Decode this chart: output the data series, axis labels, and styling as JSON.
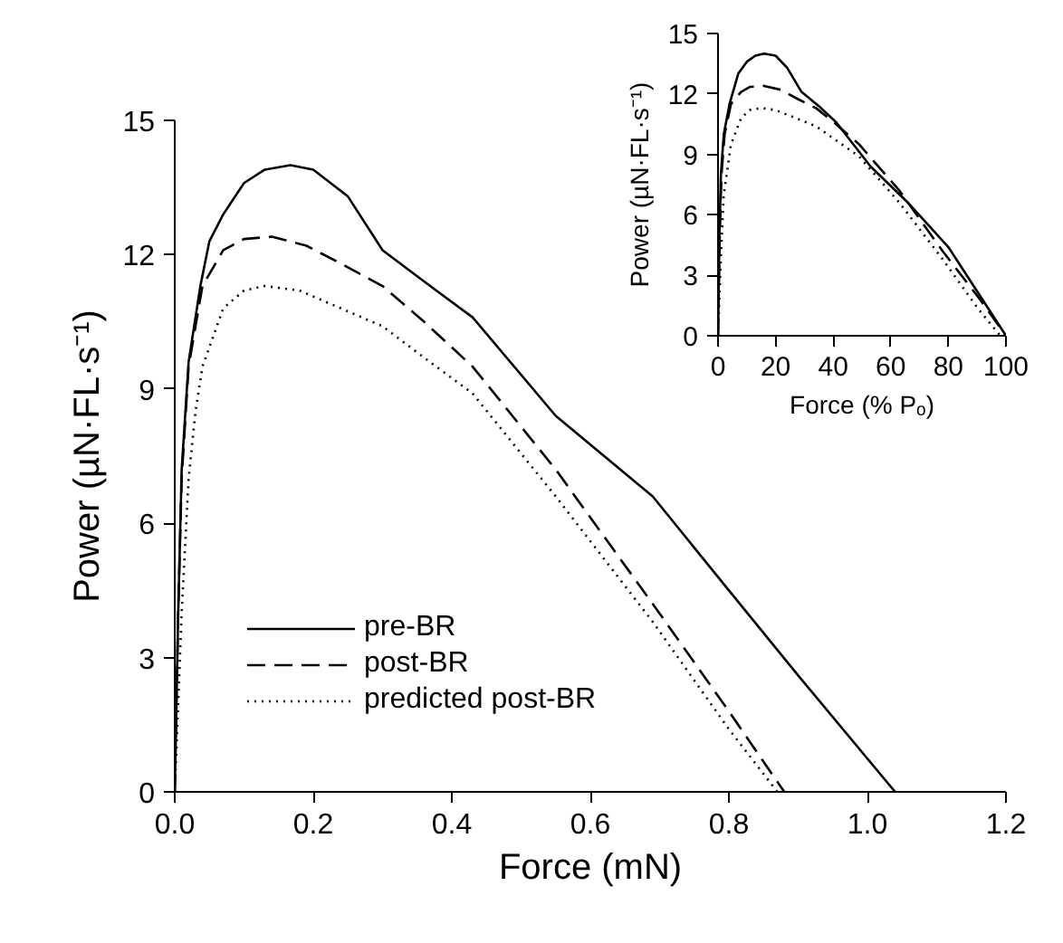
{
  "chart_data": [
    {
      "type": "line",
      "xlabel": "Force (mN)",
      "ylabel": "Power (µN·FL·s⁻¹)",
      "xlim": [
        0,
        1.2
      ],
      "ylim": [
        0,
        15
      ],
      "xticks": [
        {
          "value": 0,
          "label": "0.0"
        },
        0.2,
        0.4,
        0.6,
        0.8,
        {
          "value": 1,
          "label": "1.0"
        },
        1.2
      ],
      "yticks": [
        0,
        3,
        6,
        9,
        12,
        15
      ],
      "legend": "bottom left",
      "series": [
        {
          "name": "pre-BR",
          "color": "#000000",
          "line_style": "solid",
          "x": [
            0,
            0.005,
            0.01,
            0.02,
            0.037,
            0.05,
            0.07,
            0.1,
            0.13,
            0.167,
            0.2,
            0.25,
            0.3,
            0.36,
            0.43,
            0.55,
            0.69,
            0.8,
            0.9,
            1.04
          ],
          "values": [
            0,
            4,
            7.2,
            9.6,
            11.3,
            12.3,
            12.9,
            13.6,
            13.9,
            14.0,
            13.9,
            13.3,
            12.1,
            11.4,
            10.6,
            8.4,
            6.6,
            4.5,
            2.6,
            0
          ]
        },
        {
          "name": "post-BR",
          "color": "#000000",
          "line_style": "dashed",
          "x": [
            0,
            0.005,
            0.01,
            0.02,
            0.04,
            0.07,
            0.1,
            0.14,
            0.19,
            0.24,
            0.3,
            0.36,
            0.43,
            0.55,
            0.69,
            0.8,
            0.88
          ],
          "values": [
            0,
            4,
            7,
            9.5,
            11.3,
            12.1,
            12.35,
            12.4,
            12.2,
            11.8,
            11.3,
            10.5,
            9.5,
            7.2,
            4.2,
            1.8,
            0
          ]
        },
        {
          "name": "predicted post-BR",
          "color": "#000000",
          "line_style": "dotted",
          "x": [
            0,
            0.01,
            0.02,
            0.03,
            0.04,
            0.07,
            0.1,
            0.13,
            0.18,
            0.24,
            0.3,
            0.36,
            0.43,
            0.55,
            0.69,
            0.8,
            0.87
          ],
          "values": [
            0,
            4,
            7,
            8.5,
            9.5,
            10.8,
            11.2,
            11.3,
            11.2,
            10.8,
            10.4,
            9.7,
            8.9,
            6.6,
            3.8,
            1.4,
            0
          ]
        }
      ]
    },
    {
      "type": "line",
      "xlabel": "Force (% Pₒ)",
      "ylabel": "Power (µN·FL·s⁻¹)",
      "xlim": [
        0,
        100
      ],
      "ylim": [
        0,
        15
      ],
      "xticks": [
        0,
        20,
        40,
        60,
        80,
        100
      ],
      "yticks": [
        0,
        3,
        6,
        9,
        12,
        15
      ],
      "series": [
        {
          "color": "#000000",
          "line_style": "solid",
          "x": [
            0,
            0.5,
            1,
            2,
            4,
            7,
            10,
            13,
            16,
            20,
            24,
            29,
            35,
            41,
            53,
            66,
            80,
            100
          ],
          "values": [
            0,
            5,
            8,
            10,
            11.5,
            13,
            13.6,
            13.9,
            14.0,
            13.9,
            13.3,
            12.1,
            11.4,
            10.6,
            8.4,
            6.6,
            4.4,
            0
          ]
        },
        {
          "color": "#000000",
          "line_style": "dashed",
          "x": [
            0,
            0.6,
            1.2,
            2.3,
            4.5,
            8,
            11,
            16,
            22,
            27,
            34,
            41,
            49,
            63,
            78,
            91,
            100
          ],
          "values": [
            0,
            5,
            8,
            10,
            11.5,
            12.1,
            12.35,
            12.4,
            12.2,
            11.8,
            11.3,
            10.5,
            9.5,
            7.2,
            4.2,
            1.8,
            0
          ]
        },
        {
          "color": "#000000",
          "line_style": "dotted",
          "x": [
            0,
            1,
            2,
            3.5,
            4.5,
            8,
            11,
            15,
            20,
            27,
            34,
            41,
            49,
            63,
            78,
            90,
            98
          ],
          "values": [
            0,
            4,
            7,
            8.5,
            9.5,
            10.8,
            11.2,
            11.3,
            11.2,
            10.8,
            10.4,
            9.7,
            8.9,
            6.6,
            3.8,
            1.4,
            0
          ]
        }
      ]
    }
  ]
}
